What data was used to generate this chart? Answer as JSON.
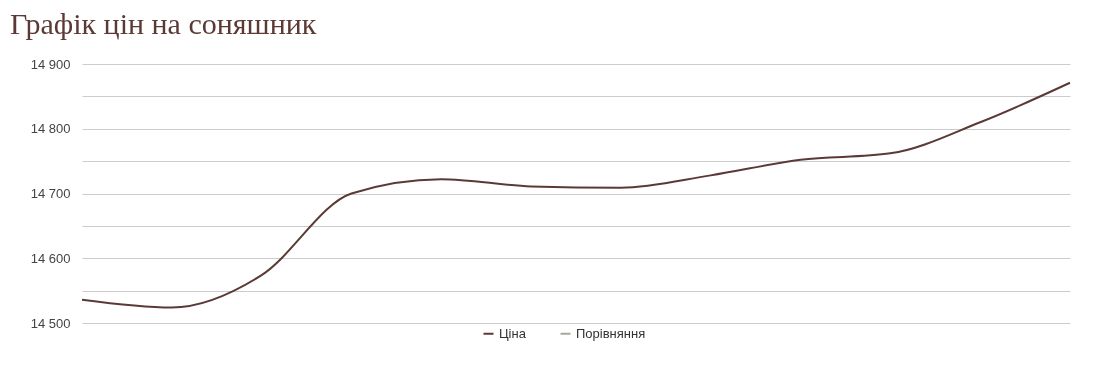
{
  "chart_data": {
    "type": "line",
    "title": "Графік цін на соняшник",
    "categories": [
      null,
      null,
      null,
      null,
      null,
      null,
      null,
      null,
      null,
      null,
      null,
      null
    ],
    "series": [
      {
        "name": "Ціна",
        "color": "#5b3a36",
        "values": [
          14536,
          14524,
          14574,
          14700,
          14722,
          14711,
          14709,
          14728,
          14752,
          14762,
          14810,
          14871
        ]
      },
      {
        "name": "Порівняння",
        "color": "#a8a898",
        "values": [
          null,
          null,
          null,
          null,
          null,
          null,
          null,
          null,
          null,
          null,
          null,
          null
        ]
      }
    ],
    "ylim": [
      14500,
      14900
    ],
    "yticks": [
      {
        "value": 14500,
        "label": "14 500"
      },
      {
        "value": 14550,
        "label": null
      },
      {
        "value": 14600,
        "label": "14 600"
      },
      {
        "value": 14650,
        "label": null
      },
      {
        "value": 14700,
        "label": "14 700"
      },
      {
        "value": 14750,
        "label": null
      },
      {
        "value": 14800,
        "label": "14 800"
      },
      {
        "value": 14850,
        "label": null
      },
      {
        "value": 14900,
        "label": "14 900"
      }
    ],
    "grid": "y",
    "legend": "bottom",
    "marker": "none",
    "line_style": "solid"
  }
}
